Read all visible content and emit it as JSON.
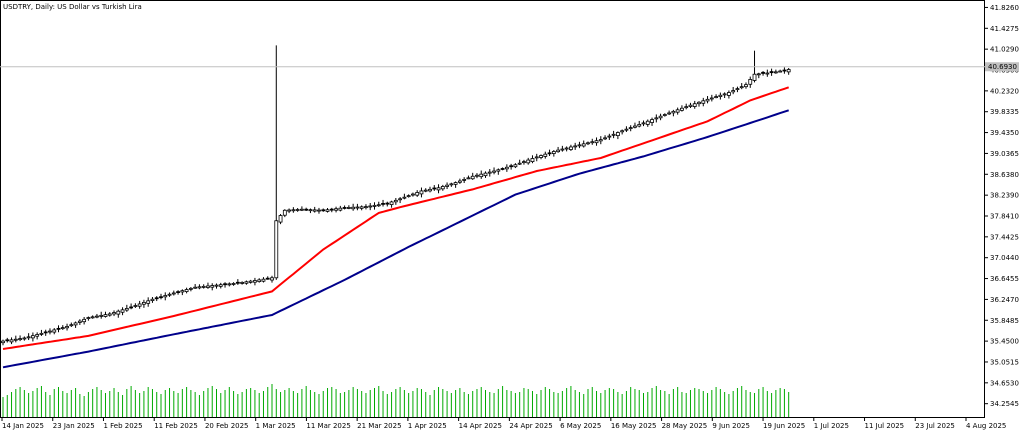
{
  "chart_data": {
    "type": "candlestick",
    "title": "USDTRY, Daily:  US Dollar vs Turkish Lira",
    "current_price_label": "40.6930",
    "y_axis": {
      "ylim": [
        34.0,
        41.93
      ],
      "ticks": [
        "41.8260",
        "41.4275",
        "41.0290",
        "40.6306",
        "40.2320",
        "39.8335",
        "39.4350",
        "39.0365",
        "38.6380",
        "38.2390",
        "37.8410",
        "37.4425",
        "37.0440",
        "36.6455",
        "36.2470",
        "35.8485",
        "35.4500",
        "35.0515",
        "34.6530",
        "34.2545"
      ],
      "tick_values": [
        41.826,
        41.4275,
        41.029,
        40.6306,
        40.232,
        39.8335,
        39.435,
        39.0365,
        38.638,
        38.239,
        37.841,
        37.4425,
        37.044,
        36.6455,
        36.247,
        35.8485,
        35.45,
        35.0515,
        34.653,
        34.2545
      ]
    },
    "x_axis": {
      "labels": [
        "14 Jan 2025",
        "23 Jan 2025",
        "1 Feb 2025",
        "11 Feb 2025",
        "20 Feb 2025",
        "1 Mar 2025",
        "11 Mar 2025",
        "21 Mar 2025",
        "1 Apr 2025",
        "14 Apr 2025",
        "24 Apr 2025",
        "6 May 2025",
        "16 May 2025",
        "28 May 2025",
        "9 Jun 2025",
        "19 Jun 2025",
        "1 Jul 2025",
        "11 Jul 2025",
        "23 Jul 2025",
        "4 Aug 2025"
      ]
    },
    "price_anchors": [
      [
        0,
        35.45
      ],
      [
        5,
        35.51
      ],
      [
        10,
        35.62
      ],
      [
        15,
        35.73
      ],
      [
        20,
        35.9
      ],
      [
        25,
        35.97
      ],
      [
        30,
        36.1
      ],
      [
        35,
        36.25
      ],
      [
        40,
        36.37
      ],
      [
        45,
        36.48
      ],
      [
        50,
        36.52
      ],
      [
        55,
        36.56
      ],
      [
        60,
        36.62
      ],
      [
        63,
        36.66
      ],
      [
        64,
        37.75
      ],
      [
        66,
        37.95
      ],
      [
        70,
        37.97
      ],
      [
        75,
        37.95
      ],
      [
        80,
        38.0
      ],
      [
        85,
        38.02
      ],
      [
        90,
        38.08
      ],
      [
        94,
        38.2
      ],
      [
        98,
        38.32
      ],
      [
        102,
        38.38
      ],
      [
        106,
        38.48
      ],
      [
        110,
        38.6
      ],
      [
        115,
        38.7
      ],
      [
        120,
        38.82
      ],
      [
        125,
        38.97
      ],
      [
        130,
        39.1
      ],
      [
        135,
        39.2
      ],
      [
        140,
        39.3
      ],
      [
        145,
        39.47
      ],
      [
        150,
        39.62
      ],
      [
        155,
        39.78
      ],
      [
        160,
        39.93
      ],
      [
        165,
        40.07
      ],
      [
        170,
        40.2
      ],
      [
        174,
        40.35
      ],
      [
        176,
        40.55
      ],
      [
        180,
        40.58
      ],
      [
        184,
        40.64
      ]
    ],
    "fast_ma": {
      "color": "#ff0000",
      "anchors": [
        [
          0,
          35.3
        ],
        [
          20,
          35.55
        ],
        [
          40,
          35.93
        ],
        [
          63,
          36.4
        ],
        [
          75,
          37.2
        ],
        [
          88,
          37.9
        ],
        [
          94,
          38.03
        ],
        [
          110,
          38.35
        ],
        [
          125,
          38.7
        ],
        [
          140,
          38.95
        ],
        [
          155,
          39.37
        ],
        [
          165,
          39.65
        ],
        [
          175,
          40.05
        ],
        [
          184,
          40.3
        ]
      ]
    },
    "slow_ma": {
      "color": "#00008b",
      "anchors": [
        [
          0,
          34.95
        ],
        [
          20,
          35.25
        ],
        [
          40,
          35.58
        ],
        [
          63,
          35.95
        ],
        [
          80,
          36.62
        ],
        [
          95,
          37.25
        ],
        [
          110,
          37.85
        ],
        [
          120,
          38.25
        ],
        [
          135,
          38.65
        ],
        [
          150,
          38.98
        ],
        [
          165,
          39.35
        ],
        [
          184,
          39.86
        ]
      ]
    },
    "volume_color": "#00aa00",
    "volume_heights": [
      20,
      22,
      25,
      28,
      30,
      27,
      24,
      26,
      29,
      31,
      25,
      22,
      28,
      30,
      26,
      24,
      27,
      29,
      23,
      21,
      25,
      28,
      30,
      27,
      24,
      26,
      29,
      25,
      22,
      28,
      31,
      27,
      24,
      26,
      30,
      28,
      25,
      23,
      27,
      29,
      26,
      24,
      28,
      30,
      27,
      25,
      22,
      26,
      29,
      31,
      28,
      24,
      27,
      30,
      26,
      23,
      25,
      28,
      29,
      27,
      24,
      26,
      30,
      33,
      28,
      25,
      27,
      29,
      26,
      24,
      28,
      31,
      27,
      25,
      23,
      26,
      29,
      30,
      28,
      24,
      25,
      27,
      30,
      28,
      26,
      24,
      27,
      29,
      31,
      26,
      23,
      25,
      28,
      30,
      27,
      24,
      26,
      29,
      28,
      25,
      22,
      27,
      30,
      28,
      26,
      24,
      27,
      29,
      25,
      23,
      26,
      28,
      30,
      27,
      25,
      24,
      28,
      31,
      27,
      26,
      24,
      25,
      29,
      28,
      26,
      23,
      27,
      30,
      28,
      25,
      24,
      26,
      29,
      31,
      27,
      25,
      23,
      28,
      30,
      26,
      24,
      27,
      29,
      28,
      25,
      23,
      26,
      30,
      28,
      27,
      24,
      25,
      29,
      31,
      27,
      26,
      23,
      28,
      30,
      25,
      24,
      27,
      29,
      28,
      26,
      24,
      27,
      30,
      28,
      25,
      23,
      26,
      29,
      31,
      27,
      25,
      24,
      28,
      30,
      26,
      24,
      27,
      29,
      28,
      25
    ],
    "grid": false,
    "legend": "none"
  }
}
